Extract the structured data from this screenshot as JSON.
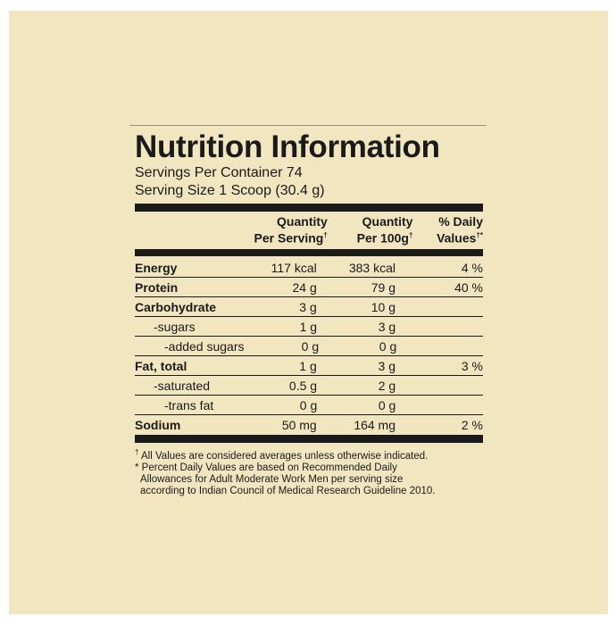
{
  "title": "Nutrition Information",
  "servings_per_container": "Servings Per Container 74",
  "serving_size": "Serving Size 1 Scoop (30.4 g)",
  "headers": {
    "col1_line1": "Quantity",
    "col1_line2": "Per Serving",
    "col1_mark": "†",
    "col2_line1": "Quantity",
    "col2_line2": "Per 100g",
    "col2_mark": "†",
    "col3_line1": "% Daily",
    "col3_line2": "Values",
    "col3_mark": "†*"
  },
  "rows": [
    {
      "name": "Energy",
      "per_serving": "117 kcal",
      "per_100g": "383 kcal",
      "daily": "4 %"
    },
    {
      "name": "Protein",
      "per_serving": "24 g",
      "per_100g": "79 g",
      "daily": "40 %"
    },
    {
      "name": "Carbohydrate",
      "per_serving": "3 g",
      "per_100g": "10 g",
      "daily": ""
    },
    {
      "name": "-sugars",
      "per_serving": "1 g",
      "per_100g": "3 g",
      "daily": ""
    },
    {
      "name": "-added sugars",
      "per_serving": "0 g",
      "per_100g": "0 g",
      "daily": ""
    },
    {
      "name": "Fat, total",
      "per_serving": "1 g",
      "per_100g": "3 g",
      "daily": "3 %"
    },
    {
      "name": "-saturated",
      "per_serving": "0.5 g",
      "per_100g": "2 g",
      "daily": ""
    },
    {
      "name": "-trans fat",
      "per_serving": "0 g",
      "per_100g": "0 g",
      "daily": ""
    },
    {
      "name": "Sodium",
      "per_serving": "50 mg",
      "per_100g": "164 mg",
      "daily": "2 %"
    }
  ],
  "footnotes": {
    "note1_mark": "†",
    "note1": "All Values are considered averages unless otherwise indicated.",
    "note2_line1": "* Percent Daily Values are based on Recommended Daily",
    "note2_line2": "Allowances for Adult Moderate Work Men per serving size",
    "note2_line3": "according to Indian Council of Medical Research Guideline 2010."
  },
  "colors": {
    "background": "#f2e6c1",
    "ink": "#1a1a1a"
  }
}
